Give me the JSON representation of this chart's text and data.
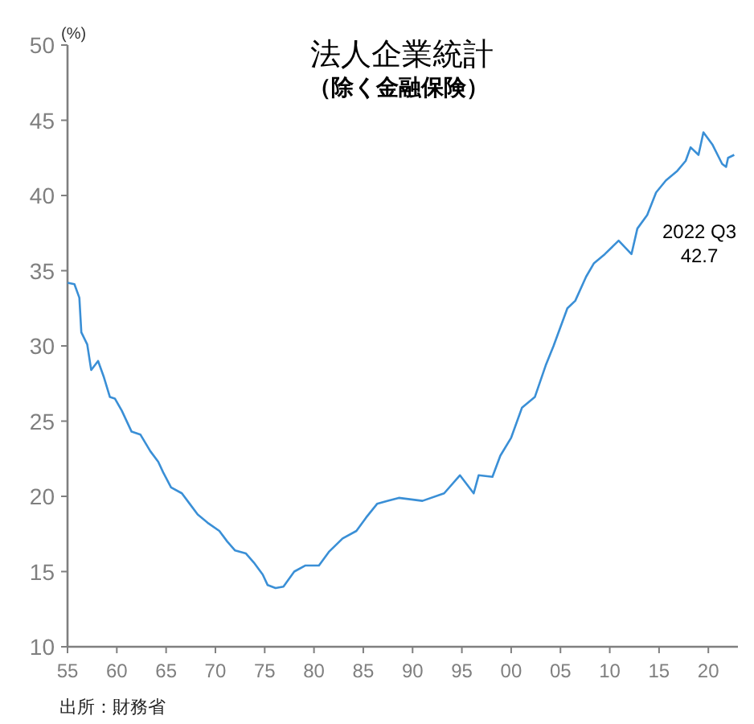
{
  "chart_data": {
    "type": "line",
    "title": "法人企業統計",
    "subtitle": "（除く金融保険）",
    "ylabel": "(%)",
    "x": [
      1955,
      1955.7,
      1956.2,
      1956.4,
      1957.0,
      1957.4,
      1958.1,
      1958.7,
      1959.3,
      1959.8,
      1960.5,
      1961.5,
      1962.4,
      1963.4,
      1964.2,
      1964.7,
      1965.5,
      1966.6,
      1967.4,
      1968.2,
      1969.3,
      1970.4,
      1971.2,
      1972.0,
      1973.1,
      1973.9,
      1974.8,
      1975.3,
      1976.1,
      1976.9,
      1978.0,
      1979.1,
      1980.5,
      1981.5,
      1982.9,
      1984.3,
      1985.3,
      1986.4,
      1987.5,
      1988.6,
      1991.0,
      1993.2,
      1994.8,
      1996.2,
      1996.7,
      1998.1,
      1998.9,
      2000.0,
      2001.1,
      2002.4,
      2003.5,
      2004.3,
      2005.7,
      2006.5,
      2007.6,
      2008.4,
      2009.5,
      2010.9,
      2012.2,
      2012.8,
      2013.8,
      2014.7,
      2015.7,
      2016.8,
      2017.7,
      2018.2,
      2019.0,
      2019.5,
      2020.4,
      2021.4,
      2021.8,
      2022.0,
      2022.625
    ],
    "series": [
      {
        "color": "#3a8fd6",
        "values": [
          34.2,
          34.1,
          33.2,
          30.9,
          30.1,
          28.4,
          29.0,
          27.9,
          26.6,
          26.5,
          25.7,
          24.3,
          24.1,
          23.0,
          22.3,
          21.6,
          20.6,
          20.2,
          19.5,
          18.8,
          18.2,
          17.7,
          17.0,
          16.4,
          16.2,
          15.6,
          14.8,
          14.1,
          13.9,
          14.0,
          15.0,
          15.4,
          15.4,
          16.3,
          17.2,
          17.7,
          18.6,
          19.5,
          19.7,
          19.9,
          19.7,
          20.2,
          21.4,
          20.2,
          21.4,
          21.3,
          22.7,
          23.9,
          25.9,
          26.6,
          28.7,
          30.0,
          32.5,
          33.0,
          34.6,
          35.5,
          36.1,
          37.0,
          36.1,
          37.8,
          38.7,
          40.2,
          41.0,
          41.6,
          42.3,
          43.2,
          42.7,
          44.2,
          43.4,
          42.1,
          41.9,
          42.5,
          42.7
        ]
      }
    ],
    "xlim": [
      1955,
      2023
    ],
    "ylim": [
      10,
      50
    ],
    "xticks": [
      {
        "value": 1955,
        "label": "55"
      },
      {
        "value": 1960,
        "label": "60"
      },
      {
        "value": 1965,
        "label": "65"
      },
      {
        "value": 1970,
        "label": "70"
      },
      {
        "value": 1975,
        "label": "75"
      },
      {
        "value": 1980,
        "label": "80"
      },
      {
        "value": 1985,
        "label": "85"
      },
      {
        "value": 1990,
        "label": "90"
      },
      {
        "value": 1995,
        "label": "95"
      },
      {
        "value": 2000,
        "label": "00"
      },
      {
        "value": 2005,
        "label": "05"
      },
      {
        "value": 2010,
        "label": "10"
      },
      {
        "value": 2015,
        "label": "15"
      },
      {
        "value": 2020,
        "label": "20"
      }
    ],
    "yticks": [
      10,
      15,
      20,
      25,
      30,
      35,
      40,
      45,
      50
    ],
    "grid": false,
    "marker": "none",
    "line_style": "solid",
    "annotations": [
      "2022 Q3\n42.7",
      "出所：財務省"
    ]
  }
}
